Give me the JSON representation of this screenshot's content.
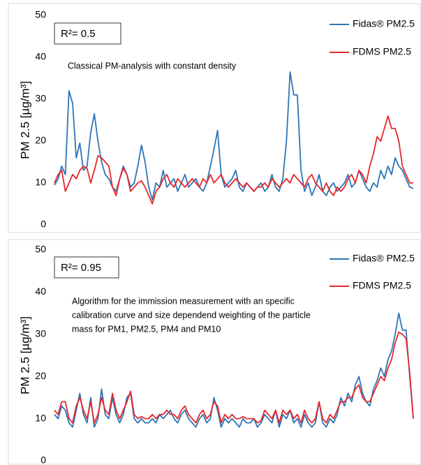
{
  "chart_data": [
    {
      "type": "line",
      "r_squared": "R²= 0.5",
      "annotation": [
        "Classical PM-analysis with constant density"
      ],
      "ylabel": "PM 2.5 [µg/m³]",
      "ylim": [
        0,
        50
      ],
      "yticks": [
        0,
        10,
        20,
        30,
        40,
        50
      ],
      "grid": false,
      "legend": "top-right",
      "series": [
        {
          "name": "Fidas® PM2.5",
          "color": "#2e75b6",
          "values": [
            9.5,
            11,
            14,
            12,
            32,
            29,
            16,
            19.5,
            13,
            14,
            22,
            26.5,
            20,
            15,
            12,
            11,
            9,
            8,
            11,
            14,
            12,
            9,
            10,
            14,
            19,
            15,
            9,
            6,
            10,
            9,
            13,
            9,
            10,
            11,
            8,
            10,
            12,
            9,
            10,
            11,
            9,
            8,
            10,
            14,
            18,
            22.5,
            12,
            9,
            10,
            11,
            13,
            9,
            8,
            10,
            9,
            8,
            9,
            10,
            8,
            9,
            12,
            9,
            8,
            11,
            20,
            36.5,
            31,
            31,
            13,
            8,
            10,
            7,
            9,
            12,
            8,
            7,
            9,
            10,
            8,
            9,
            10,
            12,
            9,
            10,
            13,
            11,
            9,
            8,
            10,
            9,
            13,
            11,
            14,
            12,
            16,
            14,
            13,
            11,
            9,
            8.7
          ]
        },
        {
          "name": "FDMS PM2.5",
          "color": "#e8272a",
          "values": [
            10,
            12,
            13,
            8,
            10,
            12,
            11,
            13,
            14,
            13.5,
            10,
            13,
            16.5,
            16,
            15,
            14,
            9,
            7,
            11,
            13.5,
            12,
            8,
            9,
            10,
            10.5,
            9,
            7,
            5,
            8,
            9,
            11,
            12,
            10,
            9,
            11,
            10,
            9,
            10,
            11,
            10,
            9,
            11,
            10,
            12,
            10,
            11,
            12,
            10,
            9,
            10,
            11,
            10,
            9,
            10,
            9,
            8,
            9,
            9,
            10,
            9,
            11,
            10,
            9,
            10,
            11,
            10,
            12,
            11,
            10,
            9,
            11,
            12,
            10,
            9,
            8,
            10,
            8,
            7,
            9,
            8,
            9,
            11,
            12,
            10,
            13,
            12,
            10,
            14,
            17,
            21,
            20,
            23,
            26,
            23,
            23,
            20,
            14,
            12,
            10,
            10
          ]
        }
      ]
    },
    {
      "type": "line",
      "r_squared": "R²= 0.95",
      "annotation": [
        "Algorithm for the immission measurement with an specific",
        "calibration curve and size dependend weighting of the particle",
        "mass for PM1, PM2.5, PM4 and PM10"
      ],
      "ylabel": "PM 2.5 [µg/m³]",
      "ylim": [
        0,
        50
      ],
      "yticks": [
        0,
        10,
        20,
        30,
        40,
        50
      ],
      "grid": false,
      "legend": "top-right",
      "series": [
        {
          "name": "Fidas® PM2.5",
          "color": "#2e75b6",
          "values": [
            11,
            10,
            13,
            12,
            9,
            8,
            12,
            16,
            11,
            9,
            15,
            8,
            10,
            17,
            11,
            10,
            15,
            11,
            9,
            11,
            15,
            16,
            10,
            9,
            10,
            9,
            9,
            10,
            9,
            11,
            10,
            11,
            12,
            10,
            9,
            11,
            12,
            10,
            9,
            8,
            10,
            11,
            9,
            10,
            15,
            12,
            8,
            10,
            9,
            10,
            9,
            8,
            10,
            9,
            9,
            10,
            8,
            9,
            11,
            10,
            9,
            12,
            8,
            11,
            10,
            12,
            9,
            10,
            8,
            11,
            9,
            8,
            9,
            14,
            9,
            8,
            10,
            9,
            11,
            15,
            13,
            16,
            14,
            18,
            20,
            16,
            14,
            13,
            17,
            19,
            22,
            20,
            24,
            26,
            30,
            35,
            31,
            31,
            20,
            10
          ]
        },
        {
          "name": "FDMS PM2.5",
          "color": "#e8272a",
          "values": [
            12,
            11,
            14,
            14,
            10,
            9,
            13,
            15,
            12,
            10,
            14,
            9,
            11,
            15,
            12,
            11,
            16,
            12,
            10,
            12,
            14,
            16.5,
            11,
            10,
            10.5,
            10,
            10,
            11,
            10,
            11,
            11,
            12,
            11,
            11,
            10,
            12,
            13,
            11,
            10,
            9,
            11,
            12,
            10,
            11,
            14,
            13,
            9,
            11,
            10,
            11,
            10,
            10,
            10.5,
            10,
            10,
            10,
            9,
            9.5,
            12,
            11,
            10,
            12,
            9,
            12,
            11,
            12,
            10,
            11,
            9,
            12,
            10,
            9,
            10,
            14,
            10,
            9,
            11,
            10,
            12,
            14,
            14,
            15,
            15,
            17,
            18,
            15,
            14,
            14,
            16,
            18,
            20,
            19,
            22,
            24,
            28,
            30.5,
            30,
            29,
            21,
            10
          ]
        }
      ]
    }
  ]
}
